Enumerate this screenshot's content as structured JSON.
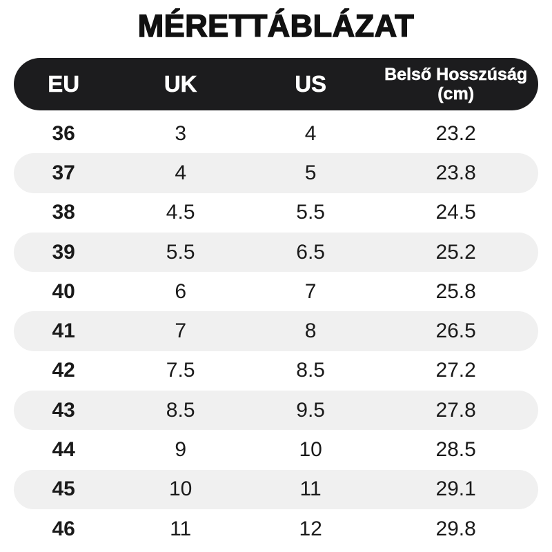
{
  "colors": {
    "page_bg": "#ffffff",
    "header_bg": "#1c1c1e",
    "header_text": "#ffffff",
    "row_alt_bg": "#f0f0f0",
    "body_text": "#1a1a1a",
    "title_text": "#111111"
  },
  "chart_data": {
    "type": "table",
    "title": "MÉRETTÁBLÁZAT",
    "columns": [
      "EU",
      "UK",
      "US",
      "Belső Hosszúság (cm)"
    ],
    "column_keys": [
      "eu",
      "uk",
      "us",
      "inner-length-cm"
    ],
    "rows": [
      [
        "36",
        "3",
        "4",
        "23.2"
      ],
      [
        "37",
        "4",
        "5",
        "23.8"
      ],
      [
        "38",
        "4.5",
        "5.5",
        "24.5"
      ],
      [
        "39",
        "5.5",
        "6.5",
        "25.2"
      ],
      [
        "40",
        "6",
        "7",
        "25.8"
      ],
      [
        "41",
        "7",
        "8",
        "26.5"
      ],
      [
        "42",
        "7.5",
        "8.5",
        "27.2"
      ],
      [
        "43",
        "8.5",
        "9.5",
        "27.8"
      ],
      [
        "44",
        "9",
        "10",
        "28.5"
      ],
      [
        "45",
        "10",
        "11",
        "29.1"
      ],
      [
        "46",
        "11",
        "12",
        "29.8"
      ]
    ]
  }
}
